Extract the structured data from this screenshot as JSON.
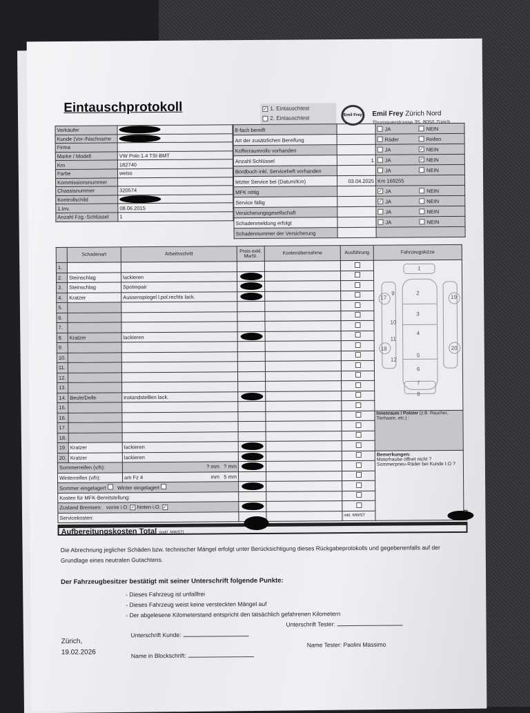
{
  "header": {
    "title": "Eintauschprotokoll",
    "test1": "1. Eintauschtest",
    "test1_checked": true,
    "test2": "2. Eintauschtest",
    "test2_checked": false,
    "logo_text": "Emil Frey",
    "brand_bold": "Emil Frey",
    "brand_rest": "Zürich Nord",
    "address": "Thurgauerstrasse 35, 8050 Zürich"
  },
  "vehicle": [
    {
      "label": "Verkäufer",
      "value": "",
      "redacted": true
    },
    {
      "label": "Kunde (Vor-/Nachname",
      "value": "",
      "redacted": true
    },
    {
      "label": "Firma",
      "value": ""
    },
    {
      "label": "Marke / Modell",
      "value": "VW Polo 1.4 TSI BMT"
    },
    {
      "label": "Km",
      "value": "182740"
    },
    {
      "label": "Farbe",
      "value": "weiss"
    },
    {
      "label": "Kommissionsnummer",
      "value": ""
    },
    {
      "label": "Chassisnummer",
      "value": "320574"
    },
    {
      "label": "Kontrollschild",
      "value": "",
      "redacted": true
    },
    {
      "label": "1.Inv.",
      "value": "08.06.2015"
    },
    {
      "label": "Anzahl Fzg.-Schlüssel",
      "value": "1"
    }
  ],
  "checks": [
    {
      "label": "8-fach bereift",
      "value": "",
      "options": [
        {
          "label": "JA",
          "checked": false
        },
        {
          "label": "NEIN",
          "checked": false
        }
      ]
    },
    {
      "label": "Art der zusätzlichen Bereifung",
      "value": "",
      "options": [
        {
          "label": "Räder",
          "checked": false
        },
        {
          "label": "Reifen",
          "checked": false
        }
      ]
    },
    {
      "label": "Kofferraumrollo vorhanden",
      "value": "",
      "options": [
        {
          "label": "JA",
          "checked": false
        },
        {
          "label": "NEIN",
          "checked": true
        }
      ]
    },
    {
      "label": "Anzahl Schlüssel",
      "value": "1",
      "options": [
        {
          "label": "JA",
          "checked": false
        },
        {
          "label": "NEIN",
          "checked": true
        }
      ]
    },
    {
      "label": "Bordbuch inkl. Serviceheft vorhanden",
      "value": "",
      "options": [
        {
          "label": "JA",
          "checked": false
        },
        {
          "label": "NEIN",
          "checked": false
        }
      ]
    },
    {
      "label": "letzter Service bei (Datum/Km)",
      "value": "03.04.2025",
      "extra": "Km 169255",
      "options": []
    },
    {
      "label": "MFK nötig",
      "value": "",
      "options": [
        {
          "label": "JA",
          "checked": true
        },
        {
          "label": "NEIN",
          "checked": false
        }
      ]
    },
    {
      "label": "Service fällig",
      "value": "",
      "options": [
        {
          "label": "JA",
          "checked": true
        },
        {
          "label": "NEIN",
          "checked": false
        }
      ]
    },
    {
      "label": "Versicherungsgesellschaft",
      "value": "",
      "options": [
        {
          "label": "JA",
          "checked": false
        },
        {
          "label": "NEIN",
          "checked": false
        }
      ]
    },
    {
      "label": "Schadenmeldung erfolgt",
      "value": "",
      "options": [
        {
          "label": "JA",
          "checked": false
        },
        {
          "label": "NEIN",
          "checked": false
        }
      ]
    },
    {
      "label": "Schadennummer der Versicherung",
      "value": "",
      "options": []
    }
  ],
  "damage": {
    "headers": [
      "Schadenart",
      "Arbeitsschritt",
      "Preis exkl. MwSt.",
      "Kostenübernahme",
      "Ausführung",
      "Fahrzeugskizze"
    ],
    "rows": [
      {
        "n": "1.",
        "art": "",
        "step": ""
      },
      {
        "n": "2.",
        "art": "Steinschlag",
        "step": "lackieren",
        "redacted": true
      },
      {
        "n": "3.",
        "art": "Steinschlag",
        "step": "Spotrepair",
        "redacted": true
      },
      {
        "n": "4.",
        "art": "Kratzer",
        "step": "Aussenspiegel l.pol.rechts lack.",
        "redacted": true
      },
      {
        "n": "5.",
        "art": "",
        "step": ""
      },
      {
        "n": "6.",
        "art": "",
        "step": ""
      },
      {
        "n": "7.",
        "art": "",
        "step": ""
      },
      {
        "n": "8.",
        "art": "Kratzer",
        "step": "lackieren",
        "redacted": true
      },
      {
        "n": "9.",
        "art": "",
        "step": ""
      },
      {
        "n": "10.",
        "art": "",
        "step": ""
      },
      {
        "n": "11.",
        "art": "",
        "step": ""
      },
      {
        "n": "12.",
        "art": "",
        "step": ""
      },
      {
        "n": "13.",
        "art": "",
        "step": ""
      },
      {
        "n": "14.",
        "art": "Beule/Delle",
        "step": "instandstelllen lack.",
        "redacted": true
      },
      {
        "n": "15.",
        "art": "",
        "step": ""
      },
      {
        "n": "16.",
        "art": "",
        "step": ""
      },
      {
        "n": "17.",
        "art": "",
        "step": ""
      },
      {
        "n": "18.",
        "art": "",
        "step": ""
      },
      {
        "n": "19.",
        "art": "Kratzer",
        "step": "lackieren",
        "redacted": true
      },
      {
        "n": "20.",
        "art": "Kratzer",
        "step": "lackieren",
        "redacted": true
      }
    ],
    "sketch_numbers": [
      "1",
      "2",
      "3",
      "4",
      "5",
      "6",
      "7",
      "8",
      "9",
      "10",
      "11",
      "12",
      "17",
      "18",
      "19",
      "20"
    ],
    "interior_label": "Innenraum / Polster",
    "interior_hint": "(z.B. Raucher, Tierhaare, etc.) :",
    "remarks_label": "Bemerkungen:",
    "remarks": "Motorhaube öffnet nicht ? Sommerpneu-Räder bei Kunde I.O ?",
    "summer_tires": {
      "label": "Sommerreifen (v/h):",
      "front": "?",
      "rear": "?",
      "unit": "mm"
    },
    "winter_tires": {
      "label": "Winterreifen (v/h):",
      "note": "am Fz 4",
      "front": "",
      "rear": "5",
      "unit": "mm"
    },
    "stored": {
      "summer": "Sommer eingelagert",
      "summer_checked": false,
      "winter": "Winter eingelagert",
      "winter_checked": false
    },
    "mfk": "Kosten für MFK-Bereitstellung:",
    "brakes": {
      "label": "Zustand Bremsen:",
      "front": "vorne i.O.",
      "front_checked": true,
      "rear": "hinten i.O.",
      "rear_checked": true
    },
    "service": "Servicekosten:",
    "incl_vat": "inkl. MWST",
    "total": "Aufbereitungskosten Total",
    "total_note": "(exkl. MWST)"
  },
  "footer": {
    "disclaimer": "Die Abrechnung jeglicher Schäden bzw. technischer Mängel erfolgt unter Berücksichtigung dieses Rückgabeprotokolls und gegebenenfalls auf der Grundlage eines neutralen Gutachtens.",
    "confirm_heading": "Der Fahrzeugbesitzer bestätigt mit seiner Unterschrift folgende Punkte:",
    "points": [
      "- Dieses Fahrzeug ist unfallfrei",
      "- Dieses Fahrzeug weist keine versteckten Mängel auf",
      "- Der abgelesene Kilometerstand entspricht den tatsächlich gefahrenen Kilometern"
    ],
    "place": "Zürich,",
    "date": "19.02.2026",
    "sig_customer": "Unterschrift Kunde:",
    "sig_tester": "Unterschrift Tester:",
    "block_name": "Name in Blockschrift:",
    "tester_name": "Name Tester: Paolini Massimo"
  }
}
